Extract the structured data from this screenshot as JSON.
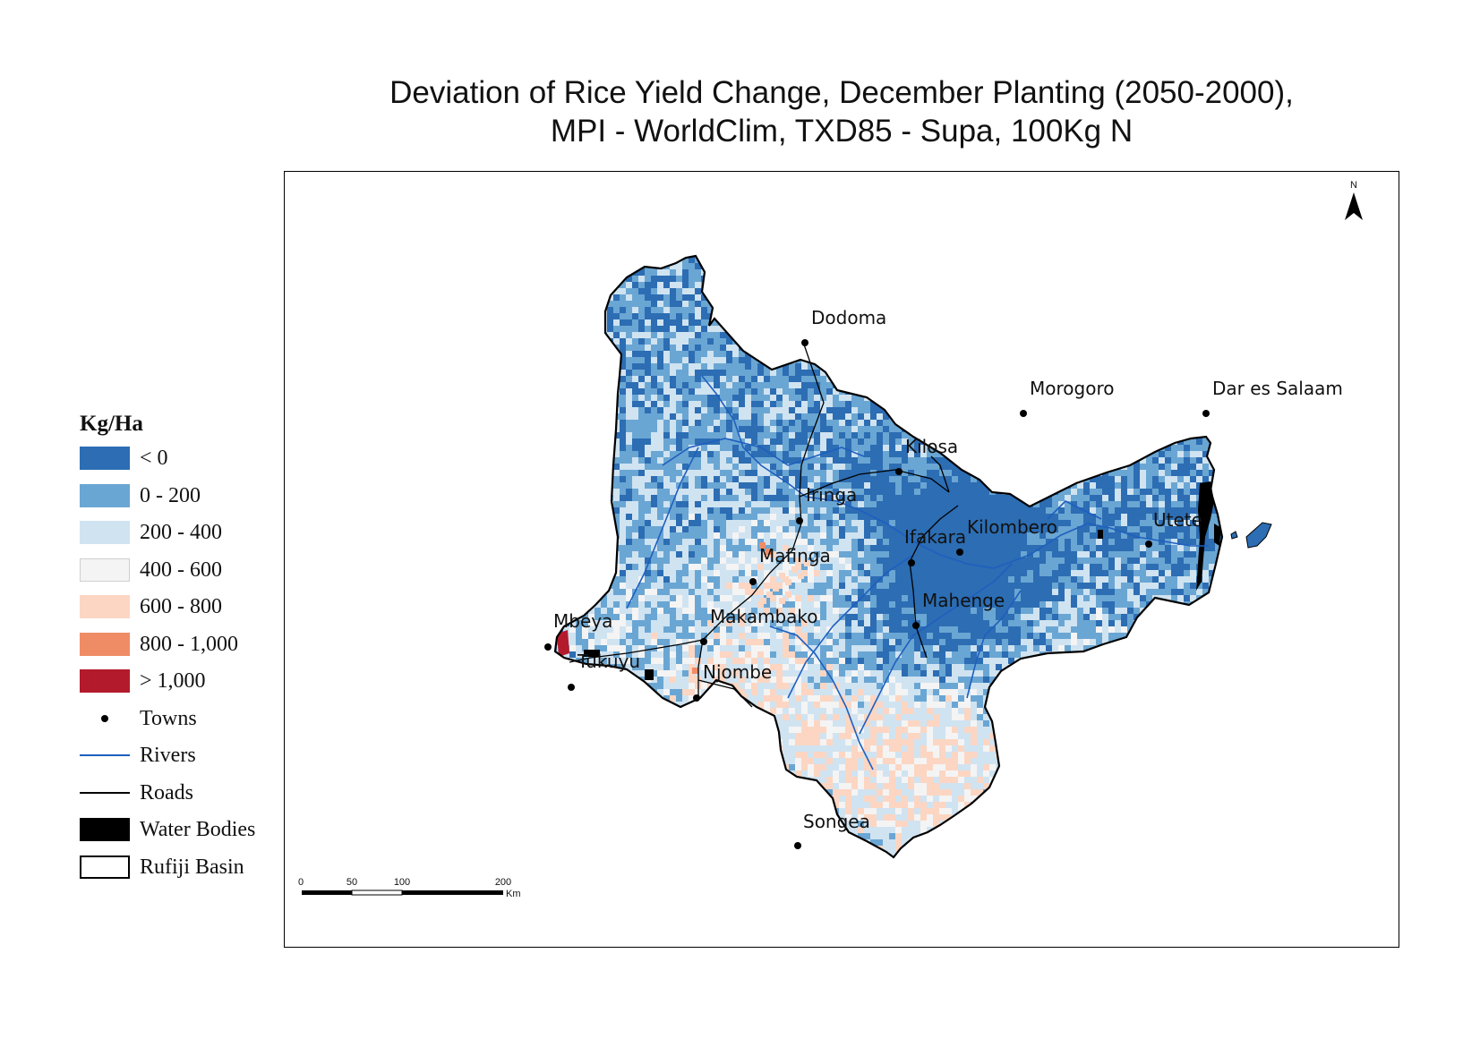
{
  "title": {
    "line1": "Deviation of Rice Yield Change, December Planting (2050-2000),",
    "line2": "MPI - WorldClim, TXD85 - Supa, 100Kg N"
  },
  "north_arrow": {
    "label": "N"
  },
  "legend": {
    "title": "Kg/Ha",
    "classes": [
      {
        "label": "< 0",
        "color": "#2c6db3"
      },
      {
        "label": "0 - 200",
        "color": "#6aa6d3"
      },
      {
        "label": "200 - 400",
        "color": "#d0e3f1"
      },
      {
        "label": "400 - 600",
        "color": "#f4f4f4"
      },
      {
        "label": "600 - 800",
        "color": "#fcd6c2"
      },
      {
        "label": "800 - 1,000",
        "color": "#ef8c66"
      },
      {
        "label": "> 1,000",
        "color": "#b31b2c"
      }
    ],
    "symbols": [
      {
        "label": "Towns",
        "type": "dot"
      },
      {
        "label": "Rivers",
        "type": "line",
        "color": "#1f5fbf"
      },
      {
        "label": "Roads",
        "type": "line",
        "color": "#000000"
      },
      {
        "label": "Water Bodies",
        "type": "fill",
        "color": "#000000"
      },
      {
        "label": "Rufiji Basin",
        "type": "outline"
      }
    ]
  },
  "towns": [
    {
      "name": "Dodoma"
    },
    {
      "name": "Morogoro"
    },
    {
      "name": "Dar es Salaam"
    },
    {
      "name": "Kilosa"
    },
    {
      "name": "Iringa"
    },
    {
      "name": "Ifakara"
    },
    {
      "name": "Kilombero"
    },
    {
      "name": "Utete"
    },
    {
      "name": "Mafinga"
    },
    {
      "name": "Mahenge"
    },
    {
      "name": "Makambako"
    },
    {
      "name": "Mbeya"
    },
    {
      "name": "Tukuyu"
    },
    {
      "name": "Njombe"
    },
    {
      "name": "Songea"
    }
  ],
  "scale_bar": {
    "ticks": [
      "0",
      "50",
      "100",
      "200"
    ],
    "unit": "Km"
  }
}
